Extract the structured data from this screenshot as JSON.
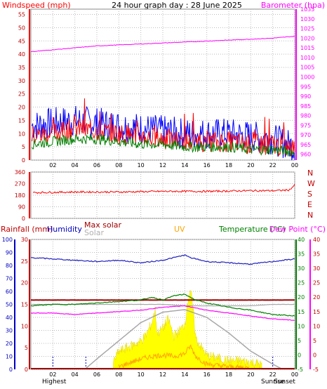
{
  "title": "24 hour graph day : 28 June 2025",
  "colors": {
    "wind": "#ff0000",
    "gust": "#0000ff",
    "avgwind": "#008000",
    "baro": "#ff00ff",
    "dir": "#ff0000",
    "rain": "#0000c0",
    "humidity": "#2020c0",
    "maxsolar": "#a00000",
    "solar": "#a8a8a8",
    "uv": "#ffa500",
    "temp": "#008000",
    "dew": "#ff00ff",
    "solarfill": "#ffff00"
  },
  "chart_data": [
    {
      "type": "line",
      "name": "wind-baro",
      "ylabel_left": "Windspeed (mph)",
      "ylabel_right": "Barometer (hpa)",
      "x_ticks": [
        "02",
        "04",
        "06",
        "08",
        "10",
        "12",
        "14",
        "16",
        "18",
        "20",
        "22",
        "00"
      ],
      "y_left_ticks": [
        "0",
        "5",
        "10",
        "15",
        "20",
        "25",
        "30",
        "35",
        "40",
        "45",
        "50",
        "55"
      ],
      "y_right_ticks": [
        "960",
        "965",
        "970",
        "975",
        "980",
        "985",
        "990",
        "995",
        "1000",
        "1005",
        "1010",
        "1015",
        "1020",
        "1025",
        "1030",
        "1035"
      ],
      "ylim_left": [
        0,
        57
      ],
      "ylim_right": [
        957,
        1035
      ],
      "series": [
        {
          "key": "gust",
          "hours": [
            0,
            2,
            4,
            6,
            8,
            10,
            12,
            14,
            16,
            18,
            20,
            22,
            24
          ],
          "values": [
            13,
            14,
            15,
            14,
            13,
            12,
            11,
            10,
            10,
            10,
            9,
            8,
            5
          ]
        },
        {
          "key": "wind",
          "hours": [
            0,
            2,
            4,
            6,
            8,
            10,
            12,
            14,
            16,
            18,
            20,
            22,
            24
          ],
          "values": [
            9,
            10,
            12,
            11,
            10,
            9,
            8,
            7,
            7,
            7,
            6,
            6,
            4
          ]
        },
        {
          "key": "avgwind",
          "hours": [
            0,
            2,
            4,
            6,
            8,
            10,
            12,
            14,
            16,
            18,
            20,
            22,
            24
          ],
          "values": [
            6,
            7,
            8,
            8,
            7,
            6,
            6,
            5,
            5,
            5,
            4,
            4,
            3
          ]
        },
        {
          "key": "baro",
          "hours": [
            0,
            2,
            4,
            6,
            8,
            10,
            12,
            14,
            16,
            18,
            20,
            22,
            24
          ],
          "values": [
            1013,
            1014,
            1015,
            1016,
            1016.5,
            1017,
            1017.5,
            1018,
            1018.5,
            1019,
            1019.5,
            1020,
            1021
          ]
        }
      ]
    },
    {
      "type": "line",
      "name": "wind-direction",
      "y_ticks": [
        "0",
        "90",
        "180",
        "270",
        "360"
      ],
      "dir_labels": [
        "N",
        "W",
        "S",
        "E",
        "N"
      ],
      "ylim": [
        0,
        360
      ],
      "series": [
        {
          "key": "dir",
          "hours": [
            0,
            4,
            8,
            12,
            16,
            20,
            22,
            23.5,
            24
          ],
          "values": [
            200,
            205,
            205,
            210,
            210,
            215,
            215,
            220,
            260
          ]
        }
      ]
    },
    {
      "type": "line",
      "name": "weather",
      "legend": [
        "Rainfall (mm)",
        "Humidity",
        "Max solar",
        "Solar",
        "UV",
        "Temperature (°C)",
        "Dew Point (°C)"
      ],
      "x_ticks": [
        "02",
        "04",
        "06",
        "08",
        "10",
        "12",
        "14",
        "16",
        "18",
        "20",
        "22",
        "00"
      ],
      "y_humidity_ticks": [
        "0",
        "10",
        "20",
        "30",
        "40",
        "50",
        "60",
        "70",
        "80",
        "90",
        "100"
      ],
      "y_rain_ticks": [
        "0",
        "5",
        "10",
        "15",
        "20",
        "25",
        "30"
      ],
      "y_temp_ticks": [
        "-5",
        "0",
        "5",
        "10",
        "15",
        "20",
        "25",
        "30",
        "35",
        "40"
      ],
      "y_dew_ticks": [
        "-5",
        "0",
        "5",
        "10",
        "15",
        "20",
        "25",
        "30",
        "35",
        "40"
      ],
      "markers": [
        "Highest",
        "Sunrise",
        "Sunset"
      ],
      "ylim_humidity": [
        0,
        100
      ],
      "ylim_temp": [
        -5,
        40
      ],
      "series": [
        {
          "key": "humidity",
          "hours": [
            0,
            2,
            4,
            6,
            8,
            10,
            12,
            14,
            14.5,
            16,
            18,
            20,
            22,
            24
          ],
          "values": [
            86,
            85,
            84,
            83,
            84,
            82,
            84,
            88,
            86,
            83,
            82,
            81,
            83,
            85
          ]
        },
        {
          "key": "maxsolar",
          "hours": [
            0,
            6,
            8,
            12,
            14,
            18,
            24
          ],
          "values": [
            19,
            19,
            19,
            19,
            19,
            19,
            19
          ]
        },
        {
          "key": "solar",
          "hours": [
            0,
            6,
            8,
            10,
            12,
            14,
            16,
            18,
            20,
            22,
            24
          ],
          "values": [
            17.5,
            17.5,
            17.5,
            17.5,
            17.5,
            17,
            17,
            17,
            17,
            17.5,
            17.5
          ]
        },
        {
          "key": "temp",
          "hours": [
            0,
            2,
            4,
            6,
            8,
            10,
            11,
            12,
            13,
            14,
            15,
            16,
            18,
            20,
            22,
            24
          ],
          "values": [
            17,
            17.5,
            17.5,
            18,
            18.5,
            19,
            20,
            19,
            20.5,
            21,
            19,
            18,
            16.5,
            15.5,
            14,
            13.5
          ]
        },
        {
          "key": "dew",
          "hours": [
            0,
            2,
            4,
            6,
            8,
            10,
            12,
            14,
            16,
            18,
            20,
            22,
            24
          ],
          "values": [
            14.5,
            14.5,
            14,
            14.5,
            15,
            15.5,
            16.5,
            17,
            15.5,
            14.5,
            13.5,
            12.5,
            12
          ]
        },
        {
          "key": "solarcurve",
          "hours": [
            4.9,
            6,
            8,
            10,
            12,
            14,
            16,
            18,
            20,
            22,
            22.9
          ],
          "values": [
            0,
            8,
            22,
            36,
            44,
            46,
            40,
            28,
            14,
            4,
            0
          ]
        },
        {
          "key": "solarfill",
          "hours": [
            7.5,
            8,
            9,
            10,
            10.5,
            11,
            11.3,
            11.5,
            12,
            12.5,
            13,
            13.5,
            14,
            14.3,
            14.5,
            14.8,
            15,
            16,
            17,
            18,
            19,
            20,
            21
          ],
          "values": [
            4,
            12,
            16,
            20,
            25,
            34,
            44,
            26,
            30,
            37,
            24,
            28,
            33,
            52,
            60,
            40,
            22,
            9,
            7,
            5,
            5,
            4,
            2
          ]
        },
        {
          "key": "uv",
          "hours": [
            8,
            9,
            10,
            11,
            12,
            13,
            14,
            14.5,
            15,
            16,
            17,
            18,
            20
          ],
          "values": [
            2,
            5,
            8,
            10,
            11,
            10,
            12,
            18,
            10,
            4,
            3,
            2,
            1
          ]
        }
      ]
    }
  ]
}
